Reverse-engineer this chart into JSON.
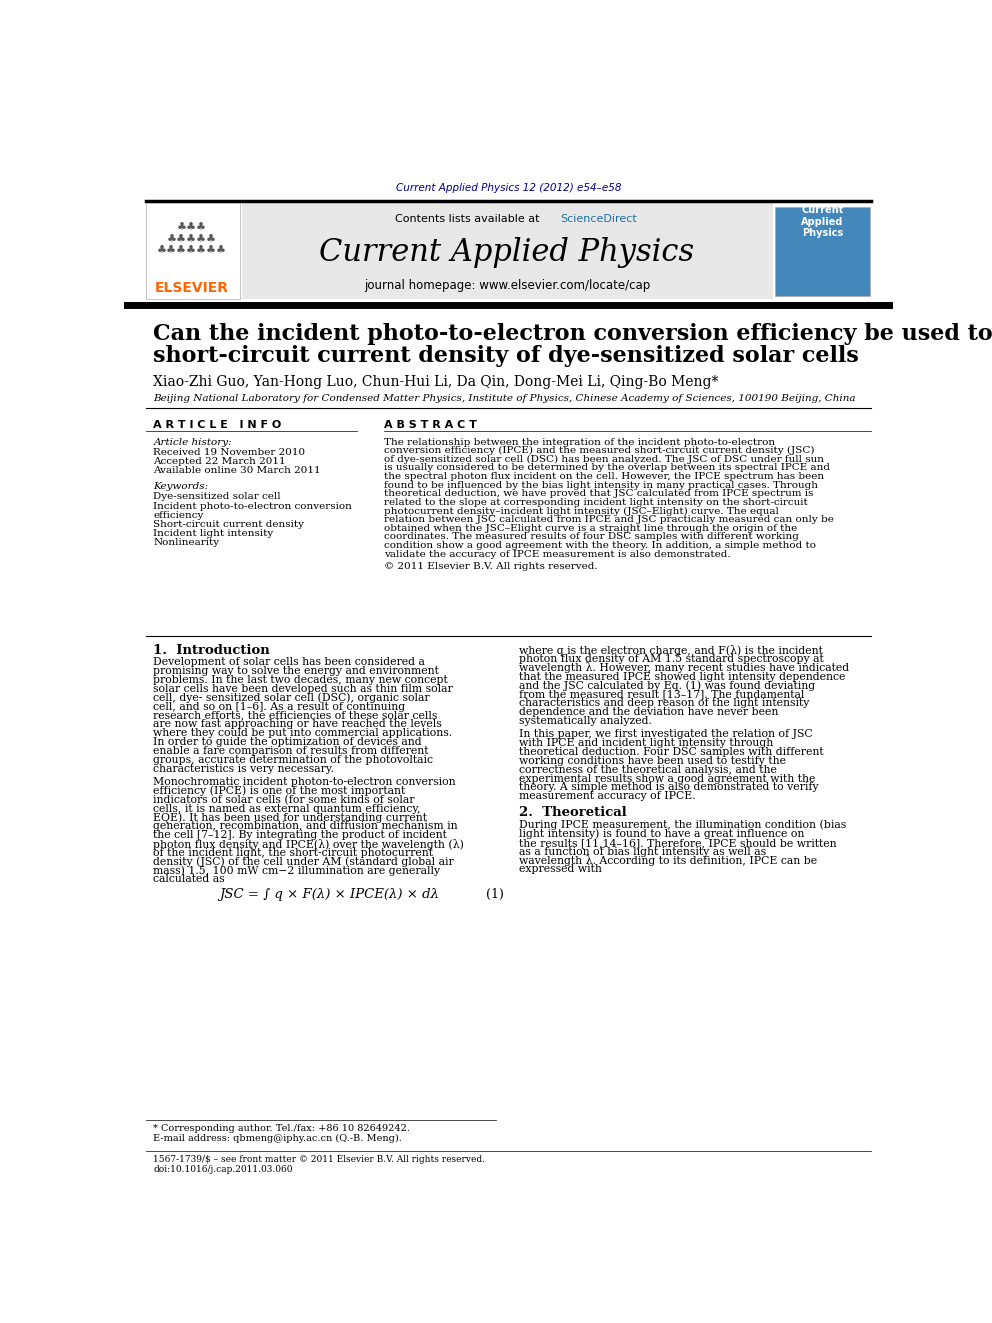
{
  "bg_color": "#ffffff",
  "elsevier_orange": "#FF6600",
  "dark_blue": "#00008B",
  "journal_title": "Current Applied Physics",
  "contents_line": "Contents lists available at ",
  "sciencedirect": "ScienceDirect",
  "homepage_line": "journal homepage: www.elsevier.com/locate/cap",
  "top_journal_ref": "Current Applied Physics 12 (2012) e54–e58",
  "paper_title_line1": "Can the incident photo-to-electron conversion efficiency be used to calculate",
  "paper_title_line2": "short-circuit current density of dye-sensitized solar cells",
  "authors": "Xiao-Zhi Guo, Yan-Hong Luo, Chun-Hui Li, Da Qin, Dong-Mei Li, Qing-Bo Meng*",
  "affiliation": "Beijing National Laboratory for Condensed Matter Physics, Institute of Physics, Chinese Academy of Sciences, 100190 Beijing, China",
  "article_info_header": "A R T I C L E   I N F O",
  "abstract_header": "A B S T R A C T",
  "article_history_label": "Article history:",
  "received": "Received 19 November 2010",
  "accepted": "Accepted 22 March 2011",
  "available": "Available online 30 March 2011",
  "keywords_label": "Keywords:",
  "kw1": "Dye-sensitized solar cell",
  "kw2": "Incident photo-to-electron conversion",
  "kw3": "efficiency",
  "kw4": "Short-circuit current density",
  "kw5": "Incident light intensity",
  "kw6": "Nonlinearity",
  "abstract_text": "The relationship between the integration of the incident photo-to-electron conversion efficiency (IPCE) and the measured short-circuit current density (JSC) of dye-sensitized solar cell (DSC) has been analyzed. The JSC of DSC under full sun is usually considered to be determined by the overlap between its spectral IPCE and the spectral photon flux incident on the cell. However, the IPCE spectrum has been found to be influenced by the bias light intensity in many practical cases. Through theoretical deduction, we have proved that JSC calculated from IPCE spectrum is related to the slope at corresponding incident light intensity on the short-circuit photocurrent density–incident light intensity (JSC–Elight) curve. The equal relation between JSC calculated from IPCE and JSC practically measured can only be obtained when the JSC–Elight curve is a straight line through the origin of the coordinates. The measured results of four DSC samples with different working condition show a good agreement with the theory. In addition, a simple method to validate the accuracy of IPCE measurement is also demonstrated.",
  "copyright": "© 2011 Elsevier B.V. All rights reserved.",
  "section1_title": "1.  Introduction",
  "section1_text1": "Development of solar cells has been considered a promising way to solve the energy and environment problems. In the last two decades, many new concept solar cells have been developed such as thin film solar cell, dye- sensitized solar cell (DSC), organic solar cell, and so on [1–6]. As a result of continuing research efforts, the efficiencies of these solar cells are now fast approaching or have reached the levels where they could be put into commercial applications. In order to guide the optimization of devices and enable a fare comparison of results from different groups, accurate determination of the photovoltaic characteristics is very necessary.",
  "section1_text2": "Monochromatic incident photon-to-electron conversion efficiency (IPCE) is one of the most important indicators of solar cells (for some kinds of solar cells, it is named as external quantum efficiency, EQE). It has been used for understanding current generation, recombination, and diffusion mechanism in the cell [7–12]. By integrating the product of incident photon flux density and IPCE(λ) over the wavelength (λ) of the incident light, the short-circuit photocurrent density (JSC) of the cell under AM (standard global air mass) 1.5, 100 mW cm−2 illumination are generally calculated as",
  "equation1": "JSC = ∫ q × F(λ) × IPCE(λ) × dλ",
  "equation1_num": "(1)",
  "eq1_right_text1": "where q is the electron charge, and F(λ) is the incident photon flux density of AM 1.5 standard spectroscopy at wavelength λ. However, many recent studies have indicated that the measured IPCE showed light intensity dependence and the JSC calculated by Eq. (1) was found deviating from the measured result [13–17]. The fundamental characteristics and deep reason of the light intensity dependence and the deviation have never been systematically analyzed.",
  "eq1_right_text2": "In this paper, we first investigated the relation of JSC with IPCE and incident light intensity through theoretical deduction. Four DSC samples with different working conditions have been used to testify the correctness of the theoretical analysis, and the experimental results show a good agreement with the theory. A simple method is also demonstrated to verify measurement accuracy of IPCE.",
  "section2_title": "2.  Theoretical",
  "section2_text1": "During IPCE measurement, the illumination condition (bias light intensity) is found to have a great influence on the results [11,14–16]. Therefore, IPCE should be written as a function of bias light intensity as well as wavelength λ. According to its definition, IPCE can be expressed with",
  "footnote1": "* Corresponding author. Tel./fax: +86 10 82649242.",
  "footnote2": "E-mail address: qbmeng@iphy.ac.cn (Q.-B. Meng).",
  "footer1": "1567-1739/$ – see front matter © 2011 Elsevier B.V. All rights reserved.",
  "footer2": "doi:10.1016/j.cap.2011.03.060"
}
